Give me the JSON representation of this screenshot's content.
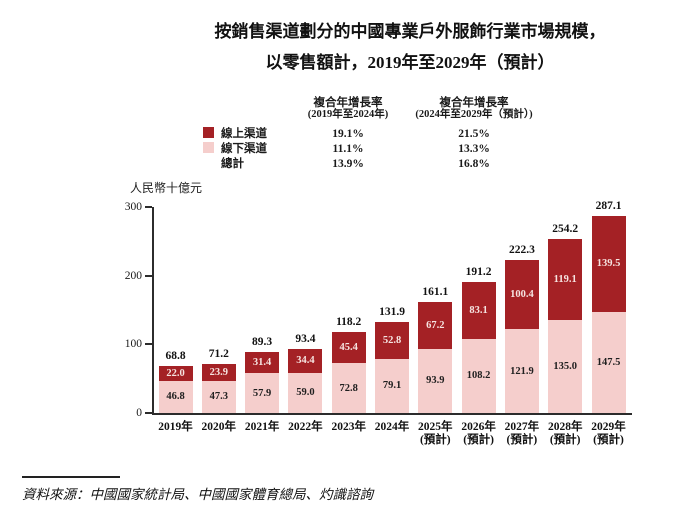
{
  "title": {
    "line1": "按銷售渠道劃分的中國專業戶外服飾行業市場規模，",
    "line2": "以零售額計，2019年至2029年（預計）"
  },
  "cagr_table": {
    "col1_header_line1": "複合年增長率",
    "col1_header_line2": "(2019年至2024年)",
    "col2_header_line1": "複合年增長率",
    "col2_header_line2": "(2024年至2029年（預計）)",
    "rows": [
      {
        "label": "線上渠道",
        "col1": "19.1%",
        "col2": "21.5%"
      },
      {
        "label": "線下渠道",
        "col1": "11.1%",
        "col2": "13.3%"
      },
      {
        "label": "總計",
        "col1": "13.9%",
        "col2": "16.8%"
      }
    ]
  },
  "colors": {
    "online_red": "#A42125",
    "offline_pink": "#F5CECC",
    "online_label_text": "#F6E4E1",
    "offline_label_text": "#1f1f1f",
    "axis": "#2c2c2c"
  },
  "chart_data": {
    "type": "bar",
    "stacked": true,
    "title": "按銷售渠道劃分的中國專業戶外服飾行業市場規模，以零售額計，2019年至2029年（預計）",
    "unit_label": "人民幣十億元",
    "categories": [
      "2019年",
      "2020年",
      "2021年",
      "2022年",
      "2023年",
      "2024年",
      "2025年",
      "2026年",
      "2027年",
      "2028年",
      "2029年"
    ],
    "category_notes": [
      "",
      "",
      "",
      "",
      "",
      "",
      "(預計)",
      "(預計)",
      "(預計)",
      "(預計)",
      "(預計)"
    ],
    "series": [
      {
        "name": "線下渠道",
        "color": "#F5CECC",
        "values": [
          46.8,
          47.3,
          57.9,
          59.0,
          72.8,
          79.1,
          93.9,
          108.2,
          121.9,
          135.0,
          147.5
        ]
      },
      {
        "name": "線上渠道",
        "color": "#A42125",
        "values": [
          22.0,
          23.9,
          31.4,
          34.4,
          45.4,
          52.8,
          67.2,
          83.1,
          100.4,
          119.1,
          139.5
        ]
      }
    ],
    "totals": [
      68.8,
      71.2,
      89.3,
      93.4,
      118.2,
      131.9,
      161.1,
      191.2,
      222.3,
      254.2,
      287.1
    ],
    "ylim": [
      0,
      300
    ],
    "yticks": [
      0,
      100,
      200,
      300
    ],
    "grid": false,
    "legend_position": "top-left"
  },
  "source": "資料來源：中國國家統計局、中國國家體育總局、灼識諮詢"
}
